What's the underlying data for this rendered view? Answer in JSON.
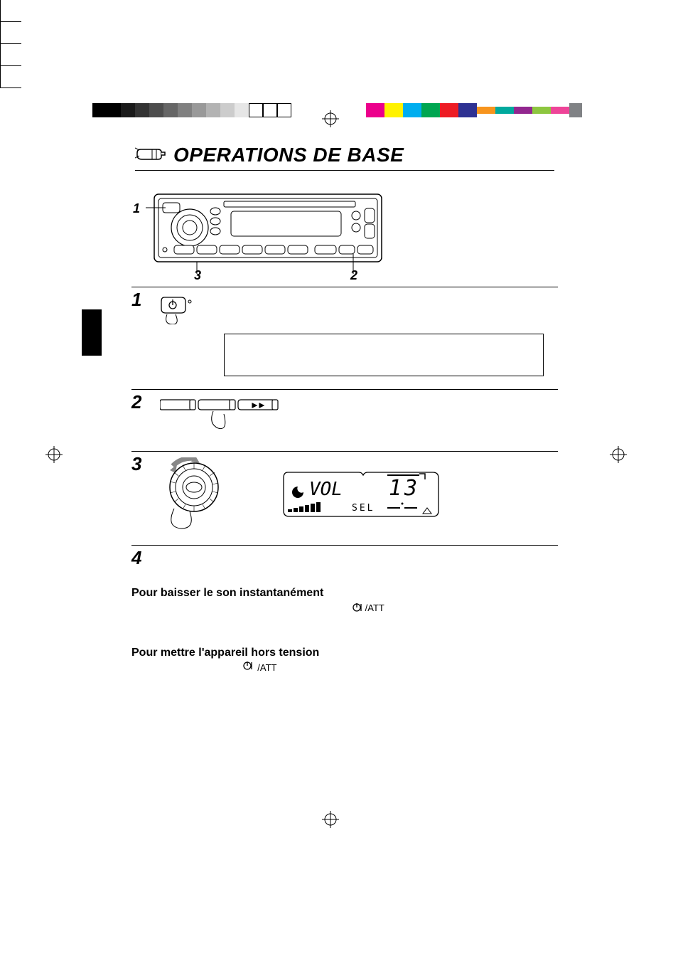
{
  "colorbar_left_colors": [
    "#000000",
    "#000000",
    "#1a1a1a",
    "#333333",
    "#4d4d4d",
    "#666666",
    "#808080",
    "#999999",
    "#b3b3b3",
    "#cccccc",
    "#e6e6e6",
    "#ffffff",
    "#ffffff",
    "#ffffff"
  ],
  "colorbar_right_main": [
    "#00aeef",
    "#ec008c",
    "#fff200",
    "#00a651",
    "#ed1c24",
    "#2e3192",
    "#ffffff"
  ],
  "colorbar_right_half": [
    "#f7941d",
    "#00a99d",
    "#92278f",
    "#8dc63f",
    "#ee4498",
    "#ffffff",
    "#808285"
  ],
  "title": "OPERATIONS DE BASE",
  "callouts": {
    "c1": "1",
    "c2": "2",
    "c3": "3"
  },
  "steps": {
    "s1": "1",
    "s2": "2",
    "s3": "3",
    "s4": "4"
  },
  "att_label": "/ATT",
  "display": {
    "vol": "VOL",
    "num": "13",
    "sel": "SEL"
  },
  "heading4a": "Pour baisser le son instantanément",
  "heading4b": "Pour mettre l'appareil hors tension"
}
